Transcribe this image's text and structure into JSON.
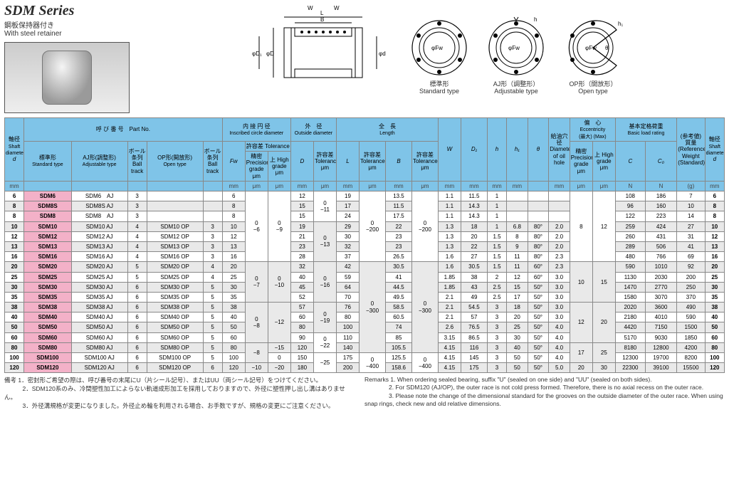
{
  "header": {
    "series_title": "SDM Series",
    "subtitle_jp": "鋼板保持器付き",
    "subtitle_en": "With steel retainer"
  },
  "diag_labels": {
    "std_jp": "標準形",
    "std_en": "Standard type",
    "aj_jp": "AJ形（調整形）",
    "aj_en": "Adjustable type",
    "op_jp": "OP形（開放形）",
    "op_en": "Open type"
  },
  "col_headers": {
    "shaft_d": {
      "jp": "軸径",
      "en": "Shaft diameter",
      "sym": "d",
      "unit": "mm"
    },
    "partno": {
      "jp": "呼 び 番 号",
      "en": "Part No."
    },
    "std_type": {
      "jp": "標準形",
      "en": "Standard type"
    },
    "aj_type": {
      "jp": "AJ形(調整形)",
      "en": "Adjustable type"
    },
    "ball1": {
      "jp": "ボール条列",
      "en": "Ball track"
    },
    "op_type": {
      "jp": "OP形(開放形)",
      "en": "Open type"
    },
    "ball2": {
      "jp": "ボール条列",
      "en": "Ball track"
    },
    "inscribed": {
      "jp": "内 接 円 径",
      "en": "Inscribed circle diameter",
      "sym": "Fw",
      "unit": "mm"
    },
    "tol": {
      "jp": "許容差",
      "en": "Tolerance",
      "prec": "精密 Precision grade μm",
      "high": "上 High grade μm"
    },
    "outside": {
      "jp": "外　径",
      "en": "Outside diameter",
      "sym": "D",
      "unit": "mm",
      "tol": "許容差 Tolerance μm"
    },
    "length": {
      "jp": "全　長",
      "en": "Length",
      "sym": "L",
      "unit": "mm",
      "tol": "許容差 Tolerance μm",
      "sym2": "B",
      "unit2": "mm",
      "tol2": "許容差 Tolerance μm"
    },
    "W": {
      "sym": "W",
      "unit": "mm"
    },
    "D1": {
      "sym": "D₁",
      "unit": "mm"
    },
    "h": {
      "sym": "h",
      "unit": "mm"
    },
    "h1": {
      "sym": "h₁",
      "unit": "mm"
    },
    "theta": {
      "sym": "θ",
      "unit": ""
    },
    "oilhole": {
      "jp": "給油穴径",
      "en": "Diameter of oil hole",
      "unit": "mm"
    },
    "ecc": {
      "jp": "偏　心",
      "en": "Eccentricity",
      "max": "(最大) (Max)",
      "prec": "精密 Precision grade μm",
      "high": "上 High grade μm"
    },
    "load": {
      "jp": "基本定格荷重",
      "en": "Basic load rating",
      "C": "C",
      "C0": "C₀",
      "unit": "N"
    },
    "weight": {
      "jp": "(参考値) 質量",
      "en": "(Reference) Weight (Standard)",
      "unit": "(g)"
    },
    "shaft_d2": {
      "jp": "軸径",
      "en": "Shaft diameter",
      "sym": "d",
      "unit": "mm"
    }
  },
  "rows": [
    {
      "d": "6",
      "std": "SDM6",
      "aj": "SDM6　AJ",
      "b1": "3",
      "op": "",
      "b2": "",
      "Fw": "6",
      "tp": "",
      "th": "",
      "D": "12",
      "Dtol": "",
      "L": "19",
      "Ltol": "",
      "B": "13.5",
      "Btol": "",
      "W": "1.1",
      "D1": "11.5",
      "h": "1",
      "h1": "",
      "th2": "",
      "oil": "",
      "ep": "",
      "eh": "",
      "C": "108",
      "C0": "186",
      "wt": "7",
      "d2": "6",
      "gray": false
    },
    {
      "d": "8",
      "std": "SDM8S",
      "aj": "SDM8S AJ",
      "b1": "3",
      "op": "",
      "b2": "",
      "Fw": "8",
      "tp": "",
      "th": "",
      "D": "15",
      "Dtol": "",
      "L": "17",
      "Ltol": "",
      "B": "11.5",
      "Btol": "",
      "W": "1.1",
      "D1": "14.3",
      "h": "1",
      "h1": "",
      "th2": "",
      "oil": "",
      "ep": "",
      "eh": "",
      "C": "96",
      "C0": "160",
      "wt": "10",
      "d2": "8",
      "gray": true
    },
    {
      "d": "8",
      "std": "SDM8",
      "aj": "SDM8　AJ",
      "b1": "3",
      "op": "",
      "b2": "",
      "Fw": "8",
      "tp": "",
      "th": "",
      "D": "15",
      "Dtol": "",
      "L": "24",
      "Ltol": "",
      "B": "17.5",
      "Btol": "",
      "W": "1.1",
      "D1": "14.3",
      "h": "1",
      "h1": "",
      "th2": "",
      "oil": "",
      "ep": "",
      "eh": "",
      "C": "122",
      "C0": "223",
      "wt": "14",
      "d2": "8",
      "gray": false
    },
    {
      "d": "10",
      "std": "SDM10",
      "aj": "SDM10 AJ",
      "b1": "4",
      "op": "SDM10 OP",
      "b2": "3",
      "Fw": "10",
      "tp": "",
      "th": "",
      "D": "19",
      "Dtol": "",
      "L": "29",
      "Ltol": "",
      "B": "22",
      "Btol": "",
      "W": "1.3",
      "D1": "18",
      "h": "1",
      "h1": "6.8",
      "th2": "80°",
      "oil": "2.0",
      "ep": "",
      "eh": "",
      "C": "259",
      "C0": "424",
      "wt": "27",
      "d2": "10",
      "gray": true
    },
    {
      "d": "12",
      "std": "SDM12",
      "aj": "SDM12 AJ",
      "b1": "4",
      "op": "SDM12 OP",
      "b2": "3",
      "Fw": "12",
      "tp": "",
      "th": "",
      "D": "21",
      "Dtol": "",
      "L": "30",
      "Ltol": "",
      "B": "23",
      "Btol": "",
      "W": "1.3",
      "D1": "20",
      "h": "1.5",
      "h1": "8",
      "th2": "80°",
      "oil": "2.0",
      "ep": "",
      "eh": "",
      "C": "260",
      "C0": "431",
      "wt": "31",
      "d2": "12",
      "gray": false
    },
    {
      "d": "13",
      "std": "SDM13",
      "aj": "SDM13 AJ",
      "b1": "4",
      "op": "SDM13 OP",
      "b2": "3",
      "Fw": "13",
      "tp": "",
      "th": "",
      "D": "23",
      "Dtol": "",
      "L": "32",
      "Ltol": "",
      "B": "23",
      "Btol": "",
      "W": "1.3",
      "D1": "22",
      "h": "1.5",
      "h1": "9",
      "th2": "80°",
      "oil": "2.0",
      "ep": "",
      "eh": "",
      "C": "289",
      "C0": "506",
      "wt": "41",
      "d2": "13",
      "gray": true
    },
    {
      "d": "16",
      "std": "SDM16",
      "aj": "SDM16 AJ",
      "b1": "4",
      "op": "SDM16 OP",
      "b2": "3",
      "Fw": "16",
      "tp": "",
      "th": "",
      "D": "28",
      "Dtol": "",
      "L": "37",
      "Ltol": "",
      "B": "26.5",
      "Btol": "",
      "W": "1.6",
      "D1": "27",
      "h": "1.5",
      "h1": "11",
      "th2": "80°",
      "oil": "2.3",
      "ep": "",
      "eh": "",
      "C": "480",
      "C0": "766",
      "wt": "69",
      "d2": "16",
      "gray": false
    },
    {
      "d": "20",
      "std": "SDM20",
      "aj": "SDM20 AJ",
      "b1": "5",
      "op": "SDM20 OP",
      "b2": "4",
      "Fw": "20",
      "tp": "",
      "th": "",
      "D": "32",
      "Dtol": "",
      "L": "42",
      "Ltol": "",
      "B": "30.5",
      "Btol": "",
      "W": "1.6",
      "D1": "30.5",
      "h": "1.5",
      "h1": "11",
      "th2": "60°",
      "oil": "2.3",
      "ep": "",
      "eh": "",
      "C": "590",
      "C0": "1010",
      "wt": "92",
      "d2": "20",
      "gray": true
    },
    {
      "d": "25",
      "std": "SDM25",
      "aj": "SDM25 AJ",
      "b1": "5",
      "op": "SDM25 OP",
      "b2": "4",
      "Fw": "25",
      "tp": "",
      "th": "",
      "D": "40",
      "Dtol": "",
      "L": "59",
      "Ltol": "",
      "B": "41",
      "Btol": "",
      "W": "1.85",
      "D1": "38",
      "h": "2",
      "h1": "12",
      "th2": "60°",
      "oil": "3.0",
      "ep": "",
      "eh": "",
      "C": "1130",
      "C0": "2030",
      "wt": "200",
      "d2": "25",
      "gray": false
    },
    {
      "d": "30",
      "std": "SDM30",
      "aj": "SDM30 AJ",
      "b1": "6",
      "op": "SDM30 OP",
      "b2": "5",
      "Fw": "30",
      "tp": "",
      "th": "",
      "D": "45",
      "Dtol": "",
      "L": "64",
      "Ltol": "",
      "B": "44.5",
      "Btol": "",
      "W": "1.85",
      "D1": "43",
      "h": "2.5",
      "h1": "15",
      "th2": "50°",
      "oil": "3.0",
      "ep": "",
      "eh": "",
      "C": "1470",
      "C0": "2770",
      "wt": "250",
      "d2": "30",
      "gray": true
    },
    {
      "d": "35",
      "std": "SDM35",
      "aj": "SDM35 AJ",
      "b1": "6",
      "op": "SDM35 OP",
      "b2": "5",
      "Fw": "35",
      "tp": "",
      "th": "",
      "D": "52",
      "Dtol": "",
      "L": "70",
      "Ltol": "",
      "B": "49.5",
      "Btol": "",
      "W": "2.1",
      "D1": "49",
      "h": "2.5",
      "h1": "17",
      "th2": "50°",
      "oil": "3.0",
      "ep": "",
      "eh": "",
      "C": "1580",
      "C0": "3070",
      "wt": "370",
      "d2": "35",
      "gray": false
    },
    {
      "d": "38",
      "std": "SDM38",
      "aj": "SDM38 AJ",
      "b1": "6",
      "op": "SDM38 OP",
      "b2": "5",
      "Fw": "38",
      "tp": "",
      "th": "",
      "D": "57",
      "Dtol": "",
      "L": "76",
      "Ltol": "",
      "B": "58.5",
      "Btol": "",
      "W": "2.1",
      "D1": "54.5",
      "h": "3",
      "h1": "18",
      "th2": "50°",
      "oil": "3.0",
      "ep": "",
      "eh": "",
      "C": "2020",
      "C0": "3600",
      "wt": "490",
      "d2": "38",
      "gray": true
    },
    {
      "d": "40",
      "std": "SDM40",
      "aj": "SDM40 AJ",
      "b1": "6",
      "op": "SDM40 OP",
      "b2": "5",
      "Fw": "40",
      "tp": "",
      "th": "",
      "D": "60",
      "Dtol": "",
      "L": "80",
      "Ltol": "",
      "B": "60.5",
      "Btol": "",
      "W": "2.1",
      "D1": "57",
      "h": "3",
      "h1": "20",
      "th2": "50°",
      "oil": "3.0",
      "ep": "",
      "eh": "",
      "C": "2180",
      "C0": "4010",
      "wt": "590",
      "d2": "40",
      "gray": false
    },
    {
      "d": "50",
      "std": "SDM50",
      "aj": "SDM50 AJ",
      "b1": "6",
      "op": "SDM50 OP",
      "b2": "5",
      "Fw": "50",
      "tp": "",
      "th": "",
      "D": "80",
      "Dtol": "",
      "L": "100",
      "Ltol": "",
      "B": "74",
      "Btol": "",
      "W": "2.6",
      "D1": "76.5",
      "h": "3",
      "h1": "25",
      "th2": "50°",
      "oil": "4.0",
      "ep": "",
      "eh": "",
      "C": "4420",
      "C0": "7150",
      "wt": "1500",
      "d2": "50",
      "gray": true
    },
    {
      "d": "60",
      "std": "SDM60",
      "aj": "SDM60 AJ",
      "b1": "6",
      "op": "SDM60 OP",
      "b2": "5",
      "Fw": "60",
      "tp": "",
      "th": "",
      "D": "90",
      "Dtol": "",
      "L": "110",
      "Ltol": "",
      "B": "85",
      "Btol": "",
      "W": "3.15",
      "D1": "86.5",
      "h": "3",
      "h1": "30",
      "th2": "50°",
      "oil": "4.0",
      "ep": "",
      "eh": "",
      "C": "5170",
      "C0": "9030",
      "wt": "1850",
      "d2": "60",
      "gray": false
    },
    {
      "d": "80",
      "std": "SDM80",
      "aj": "SDM80 AJ",
      "b1": "6",
      "op": "SDM80 OP",
      "b2": "5",
      "Fw": "80",
      "tp": "",
      "th": "",
      "D": "120",
      "Dtol": "",
      "L": "140",
      "Ltol": "",
      "B": "105.5",
      "Btol": "",
      "W": "4.15",
      "D1": "116",
      "h": "3",
      "h1": "40",
      "th2": "50°",
      "oil": "4.0",
      "ep": "",
      "eh": "",
      "C": "8180",
      "C0": "12800",
      "wt": "4200",
      "d2": "80",
      "gray": true
    },
    {
      "d": "100",
      "std": "SDM100",
      "aj": "SDM100 AJ",
      "b1": "6",
      "op": "SDM100 OP",
      "b2": "5",
      "Fw": "100",
      "tp": "",
      "th": "",
      "D": "150",
      "Dtol": "",
      "L": "175",
      "Ltol": "",
      "B": "125.5",
      "Btol": "",
      "W": "4.15",
      "D1": "145",
      "h": "3",
      "h1": "50",
      "th2": "50°",
      "oil": "4.0",
      "ep": "",
      "eh": "",
      "C": "12300",
      "C0": "19700",
      "wt": "8200",
      "d2": "100",
      "gray": false
    },
    {
      "d": "120",
      "std": "SDM120",
      "aj": "SDM120 AJ",
      "b1": "6",
      "op": "SDM120 OP",
      "b2": "6",
      "Fw": "120",
      "tp": "",
      "th": "",
      "D": "180",
      "Dtol": "",
      "L": "200",
      "Ltol": "",
      "B": "158.6",
      "Btol": "",
      "W": "4.15",
      "D1": "175",
      "h": "3",
      "h1": "50",
      "th2": "50°",
      "oil": "5.0",
      "ep": "",
      "eh": "",
      "C": "22300",
      "C0": "39100",
      "wt": "15500",
      "d2": "120",
      "gray": true
    }
  ],
  "mergedTol": {
    "Fw_prec": [
      {
        "start": 0,
        "span": 7,
        "val": "0\n−6"
      },
      {
        "start": 7,
        "span": 4,
        "val": "0\n−7"
      },
      {
        "start": 11,
        "span": 4,
        "val": "0\n−8"
      },
      {
        "start": 15,
        "span": 2,
        "val": "−8"
      },
      {
        "start": 17,
        "span": 1,
        "val": "−10"
      }
    ],
    "Fw_high": [
      {
        "start": 0,
        "span": 7,
        "val": "0\n−9"
      },
      {
        "start": 7,
        "span": 4,
        "val": "0\n−10"
      },
      {
        "start": 11,
        "span": 4,
        "val": "−12"
      },
      {
        "start": 15,
        "span": 1,
        "val": "−15"
      },
      {
        "start": 16,
        "span": 1,
        "val": "0"
      },
      {
        "start": 17,
        "span": 1,
        "val": "−20"
      }
    ],
    "D_tol": [
      {
        "start": 0,
        "span": 3,
        "val": "0\n−11"
      },
      {
        "start": 3,
        "span": 4,
        "val": "0\n−13"
      },
      {
        "start": 7,
        "span": 4,
        "val": "0\n−16"
      },
      {
        "start": 11,
        "span": 3,
        "val": "0\n−19"
      },
      {
        "start": 14,
        "span": 2,
        "val": "0\n−22"
      },
      {
        "start": 16,
        "span": 2,
        "val": "−25"
      }
    ],
    "L_tol": [
      {
        "start": 0,
        "span": 7,
        "val": "0\n−200"
      },
      {
        "start": 7,
        "span": 9,
        "val": "0\n−300"
      },
      {
        "start": 16,
        "span": 2,
        "val": "0\n−400"
      }
    ],
    "B_tol": [
      {
        "start": 0,
        "span": 7,
        "val": "0\n−200"
      },
      {
        "start": 7,
        "span": 9,
        "val": "0\n−300"
      },
      {
        "start": 16,
        "span": 2,
        "val": "0\n−400"
      }
    ],
    "oil": [
      {
        "start": 0,
        "span": 7,
        "val": "8"
      },
      {
        "start": 7,
        "span": 4,
        "val": "10"
      },
      {
        "start": 11,
        "span": 4,
        "val": "12"
      },
      {
        "start": 15,
        "span": 2,
        "val": "17"
      },
      {
        "start": 17,
        "span": 1,
        "val": "20"
      }
    ],
    "ecc_prec": [
      {
        "start": 0,
        "span": 7,
        "val": "12"
      },
      {
        "start": 7,
        "span": 4,
        "val": "15"
      },
      {
        "start": 11,
        "span": 4,
        "val": "20"
      },
      {
        "start": 15,
        "span": 2,
        "val": "25"
      },
      {
        "start": 17,
        "span": 1,
        "val": "30"
      }
    ]
  },
  "notes_jp": {
    "label": "備考",
    "items": [
      "1．密封形ご希望の際は、呼び番号の末尾にU（片シール記号）、またはUU（両シール記号）をつけてください。",
      "2．SDM120系のみ、冷間塑性加工によらない軌道成形加工を採用しておりますので、外径に塑性押し出し溝はありません。",
      "3．外径溝規格が変更になりました。外径止め輪を利用される場合、お手数ですが、規格の変更にご注意ください。"
    ]
  },
  "notes_en": {
    "label": "Remarks",
    "items": [
      "1. When ordering sealed bearing, suffix \"U\" (sealed on one side) and \"UU\" (sealed on both sides).",
      "2. For SDM120 (AJ/OP), the outer race is not cold press formed. Therefore, there is no axial recess on the outer race.",
      "3. Please note the change of the dimensional standard for the grooves on the outside diameter of the outer race. When using snap rings, check new and old relative dimensions."
    ]
  }
}
